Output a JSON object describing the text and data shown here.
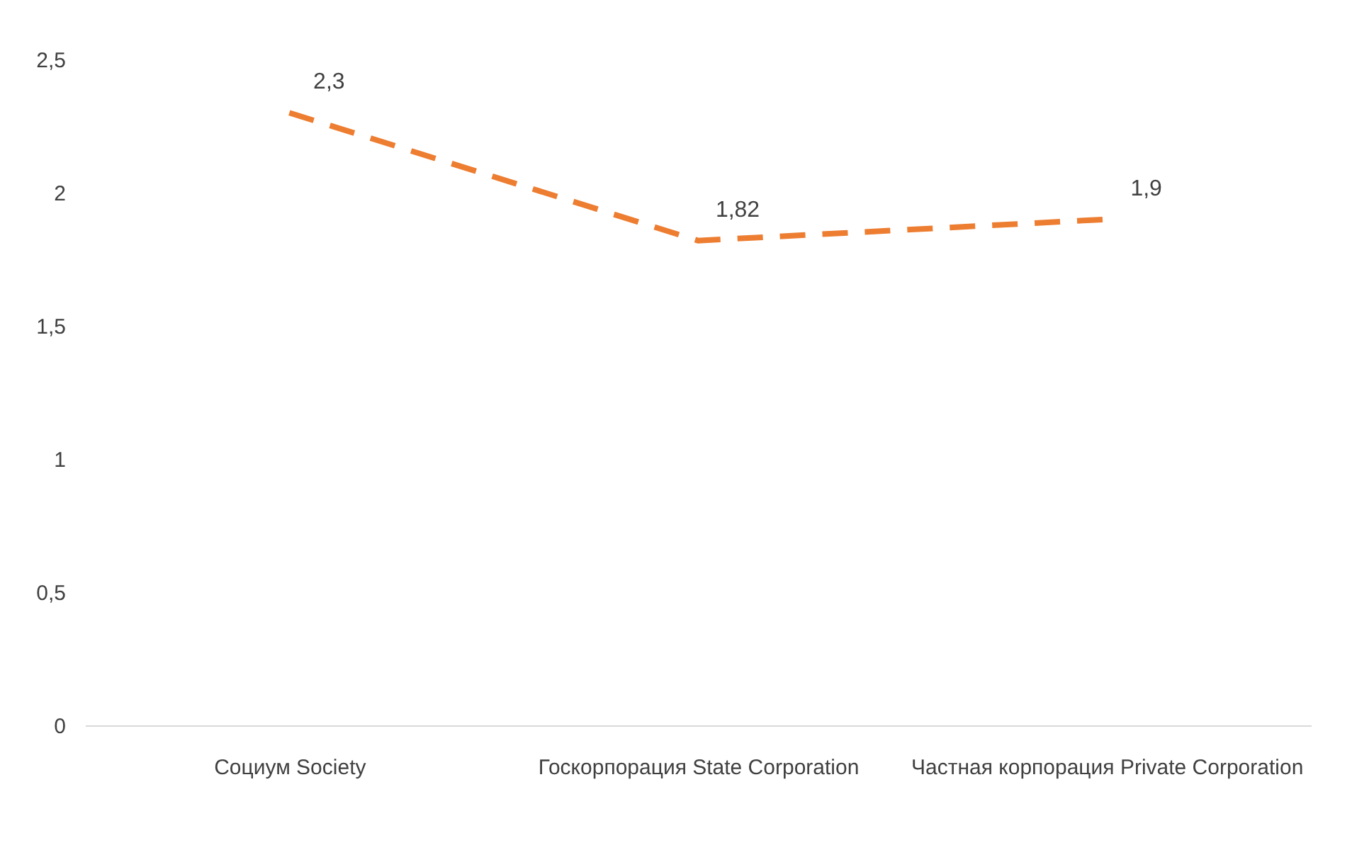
{
  "chart_data": {
    "type": "line",
    "categories": [
      "Социум Society",
      "Госкорпорация State Corporation",
      "Частная корпорация Private Corporation"
    ],
    "series": [
      {
        "color": "#ed7d31",
        "values": [
          2.3,
          1.82,
          1.9
        ],
        "value_labels": [
          "2,3",
          "1,82",
          "1,9"
        ]
      }
    ],
    "ylim": [
      0,
      2.5
    ],
    "yticks": [
      0,
      {
        "value": 0.5,
        "label": "0,5"
      },
      1,
      {
        "value": 1.5,
        "label": "1,5"
      },
      2,
      {
        "value": 2.5,
        "label": "2,5"
      }
    ],
    "grid": false,
    "line_style": "dashed",
    "marker": "none"
  }
}
